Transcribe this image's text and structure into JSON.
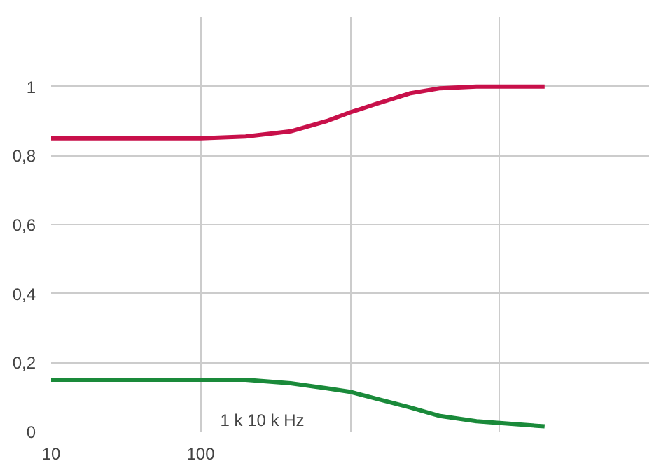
{
  "chart_data": {
    "type": "line",
    "log": "x",
    "grid": true,
    "line_style": "solid",
    "marker": "none",
    "xlim": [
      10,
      100000
    ],
    "xticks": [
      10,
      100,
      {
        "value": 1000,
        "label": null
      },
      {
        "value": 10000,
        "label": null
      }
    ],
    "annotations": [
      "1 k 10 k Hz"
    ],
    "ylim": [
      0,
      1.2
    ],
    "yticks": [
      0,
      {
        "value": 0.2,
        "label": "0,2"
      },
      {
        "value": 0.4,
        "label": "0,4"
      },
      {
        "value": 0.6,
        "label": "0,6"
      },
      {
        "value": 0.8,
        "label": "0,8"
      },
      1
    ],
    "x": [
      10,
      100,
      200,
      400,
      700,
      1000,
      1500,
      2500,
      4000,
      7000,
      10000,
      20000
    ],
    "series": [
      {
        "color": "#c8104a",
        "values": [
          0.85,
          0.85,
          0.855,
          0.87,
          0.9,
          0.925,
          0.95,
          0.98,
          0.995,
          1,
          1,
          1
        ]
      },
      {
        "color": "#1a8a3a",
        "values": [
          0.15,
          0.15,
          0.15,
          0.14,
          0.125,
          0.115,
          0.095,
          0.07,
          0.045,
          0.03,
          0.025,
          0.015
        ]
      }
    ]
  }
}
